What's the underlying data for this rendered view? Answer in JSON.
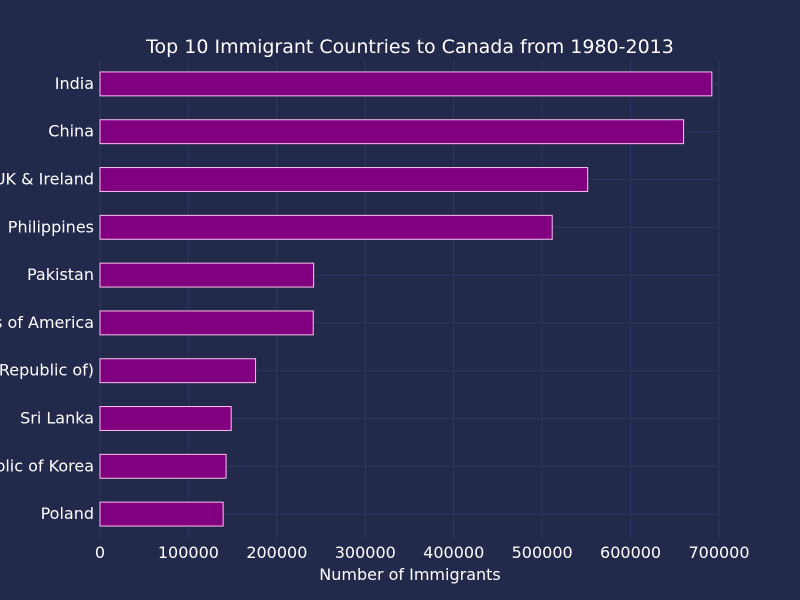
{
  "chart_data": {
    "type": "bar",
    "orientation": "horizontal",
    "title": "Top 10 Immigrant Countries to Canada from 1980-2013",
    "xlabel": "Number of Immigrants",
    "ylabel": "",
    "categories": [
      "India",
      "China",
      "UK & Ireland",
      "Philippines",
      "Pakistan",
      "United States of America",
      "Iran (Islamic Republic of)",
      "Sri Lanka",
      "Republic of Korea",
      "Poland"
    ],
    "values": [
      691904,
      659962,
      551500,
      511391,
      241600,
      241122,
      175923,
      148358,
      142581,
      139241
    ],
    "xlim": [
      0,
      700000
    ],
    "xticks": [
      0,
      100000,
      200000,
      300000,
      400000,
      500000,
      600000,
      700000
    ],
    "xtick_labels": [
      "0",
      "100000",
      "200000",
      "300000",
      "400000",
      "500000",
      "600000",
      "700000"
    ],
    "grid": true,
    "colors": {
      "background": "#22294a",
      "bar_fill": "#800080",
      "bar_edge": "#ffc0f0",
      "grid": "#2f3763",
      "text": "#ffffff"
    }
  }
}
